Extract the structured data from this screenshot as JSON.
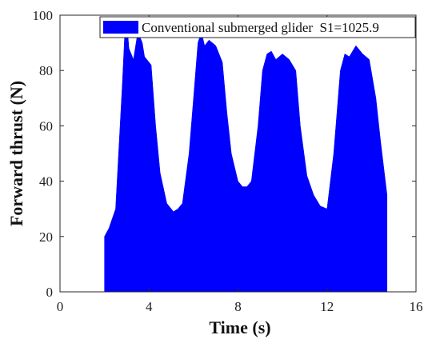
{
  "chart_data": {
    "type": "area",
    "title": "",
    "xlabel": "Time (s)",
    "ylabel": "Forward thrust (N)",
    "xlim": [
      0,
      16
    ],
    "ylim": [
      0,
      100
    ],
    "xticks": [
      "0",
      "4",
      "8",
      "12",
      "16"
    ],
    "yticks": [
      "0",
      "20",
      "40",
      "60",
      "80",
      "100"
    ],
    "grid": false,
    "legend_position": "top-right",
    "color": "#0000ff",
    "series": [
      {
        "name": "Conventional submerged glider  S1=1025.9",
        "x": [
          2.0,
          2.0,
          2.2,
          2.5,
          2.8,
          2.9,
          3.0,
          3.1,
          3.3,
          3.5,
          3.7,
          3.8,
          3.9,
          4.1,
          4.3,
          4.5,
          4.8,
          5.1,
          5.3,
          5.5,
          5.8,
          6.0,
          6.2,
          6.35,
          6.5,
          6.7,
          7.0,
          7.3,
          7.5,
          7.7,
          8.0,
          8.2,
          8.4,
          8.6,
          8.9,
          9.1,
          9.3,
          9.5,
          9.7,
          10.0,
          10.3,
          10.6,
          10.8,
          11.1,
          11.4,
          11.7,
          12.0,
          12.3,
          12.6,
          12.8,
          13.0,
          13.3,
          13.6,
          13.9,
          14.2,
          14.4,
          14.7,
          14.7
        ],
        "y": [
          0,
          20,
          23,
          30,
          75,
          92,
          98,
          88,
          84,
          94,
          90,
          85,
          84,
          82,
          60,
          43,
          32,
          29,
          30,
          32,
          50,
          70,
          90,
          94,
          89,
          91,
          89,
          83,
          65,
          50,
          40,
          38,
          38,
          40,
          60,
          80,
          86,
          87,
          84,
          86,
          84,
          80,
          60,
          42,
          35,
          31,
          30,
          50,
          80,
          86,
          85,
          89,
          86,
          84,
          70,
          55,
          35,
          0
        ]
      }
    ]
  }
}
